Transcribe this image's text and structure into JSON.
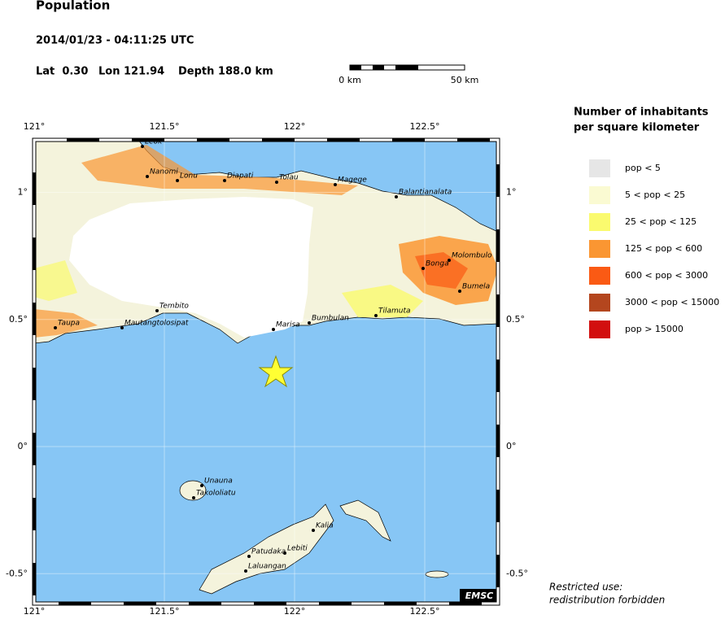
{
  "header": {
    "title": "Population",
    "datetime": "2014/01/23 - 04:11:25 UTC",
    "lat": "Lat  0.30",
    "lon": "Lon 121.94",
    "depth": "Depth 188.0 km"
  },
  "scale_bar": {
    "start": "0 km",
    "end": "50 km"
  },
  "map": {
    "lon_ticks": [
      {
        "value": 121,
        "label": "121°"
      },
      {
        "value": 121.5,
        "label": "121.5°"
      },
      {
        "value": 122,
        "label": "122°"
      },
      {
        "value": 122.5,
        "label": "122.5°"
      }
    ],
    "lat_ticks": [
      {
        "value": 1,
        "label": "1°"
      },
      {
        "value": 0.5,
        "label": "0.5°"
      },
      {
        "value": 0,
        "label": "0°"
      },
      {
        "value": -0.5,
        "label": "-0.5°"
      }
    ],
    "cities": [
      "Leok",
      "Nanomi",
      "Lonu",
      "Diapati",
      "Tolau",
      "Magege",
      "Balantianalata",
      "Molombulo",
      "Bonga",
      "Bumela",
      "Tilamuta",
      "Bumbulan",
      "Marisa",
      "Tembito",
      "Taupa",
      "Mautangtolosipat",
      "Unauna",
      "Takololiatu",
      "Kalia",
      "Lebiti",
      "Patudaka",
      "Laluangan"
    ],
    "credit": "EMSC"
  },
  "legend": {
    "title": [
      "Number of inhabitants",
      "per square kilometer"
    ],
    "items": [
      {
        "label": "pop < 5",
        "color": "#e6e6e6"
      },
      {
        "label": "5 < pop < 25",
        "color": "#fafad2"
      },
      {
        "label": "25 < pop < 125",
        "color": "#fafa6e"
      },
      {
        "label": "125 < pop < 600",
        "color": "#fa9632"
      },
      {
        "label": "600 < pop < 3000",
        "color": "#fa5a14"
      },
      {
        "label": "3000 < pop < 15000",
        "color": "#b4461e"
      },
      {
        "label": "pop > 15000",
        "color": "#d20f0f"
      }
    ]
  },
  "note": [
    "Restricted use:",
    "redistribution forbidden"
  ]
}
